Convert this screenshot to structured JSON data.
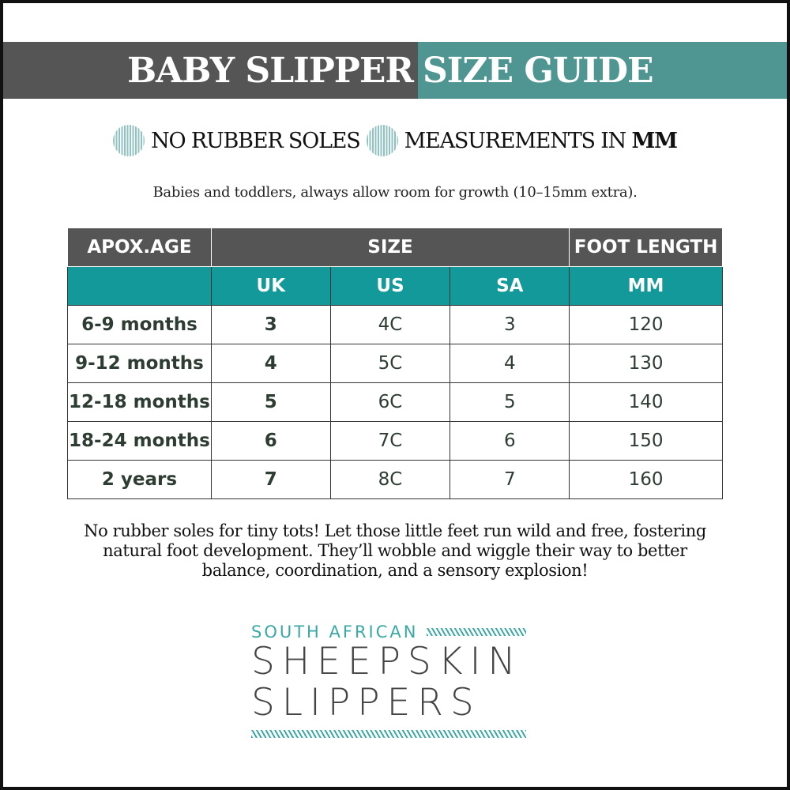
{
  "title": {
    "part1": "BABY SLIPPER",
    "part2": "SIZE GUIDE"
  },
  "features": {
    "item1": "NO RUBBER SOLES",
    "item2_prefix": "MEASUREMENTS IN ",
    "item2_unit": "MM"
  },
  "note": "Babies and toddlers, always allow room for growth (10–15mm extra).",
  "table": {
    "header1": [
      "APOX.AGE",
      "SIZE",
      "FOOT LENGTH"
    ],
    "header2": [
      "",
      "UK",
      "US",
      "SA",
      "MM"
    ],
    "rows": [
      [
        "6-9 months",
        "3",
        "4C",
        "3",
        "120"
      ],
      [
        "9-12 months",
        "4",
        "5C",
        "4",
        "130"
      ],
      [
        "12-18 months",
        "5",
        "6C",
        "5",
        "140"
      ],
      [
        "18-24 months",
        "6",
        "7C",
        "6",
        "150"
      ],
      [
        "2 years",
        "7",
        "8C",
        "7",
        "160"
      ]
    ]
  },
  "description": "No rubber soles for tiny tots! Let those little feet run wild and free, fostering natural foot development. They’ll wobble and wiggle their way to better balance, coordination, and a sensory explosion!",
  "logo": {
    "line1": "SOUTH AFRICAN",
    "line2": "SHEEPSKIN",
    "line3": "SLIPPERS"
  },
  "colors": {
    "dark": "#555555",
    "teal": "#4f9692",
    "table_teal": "#14999a",
    "logo_teal": "#3aa9a6"
  }
}
